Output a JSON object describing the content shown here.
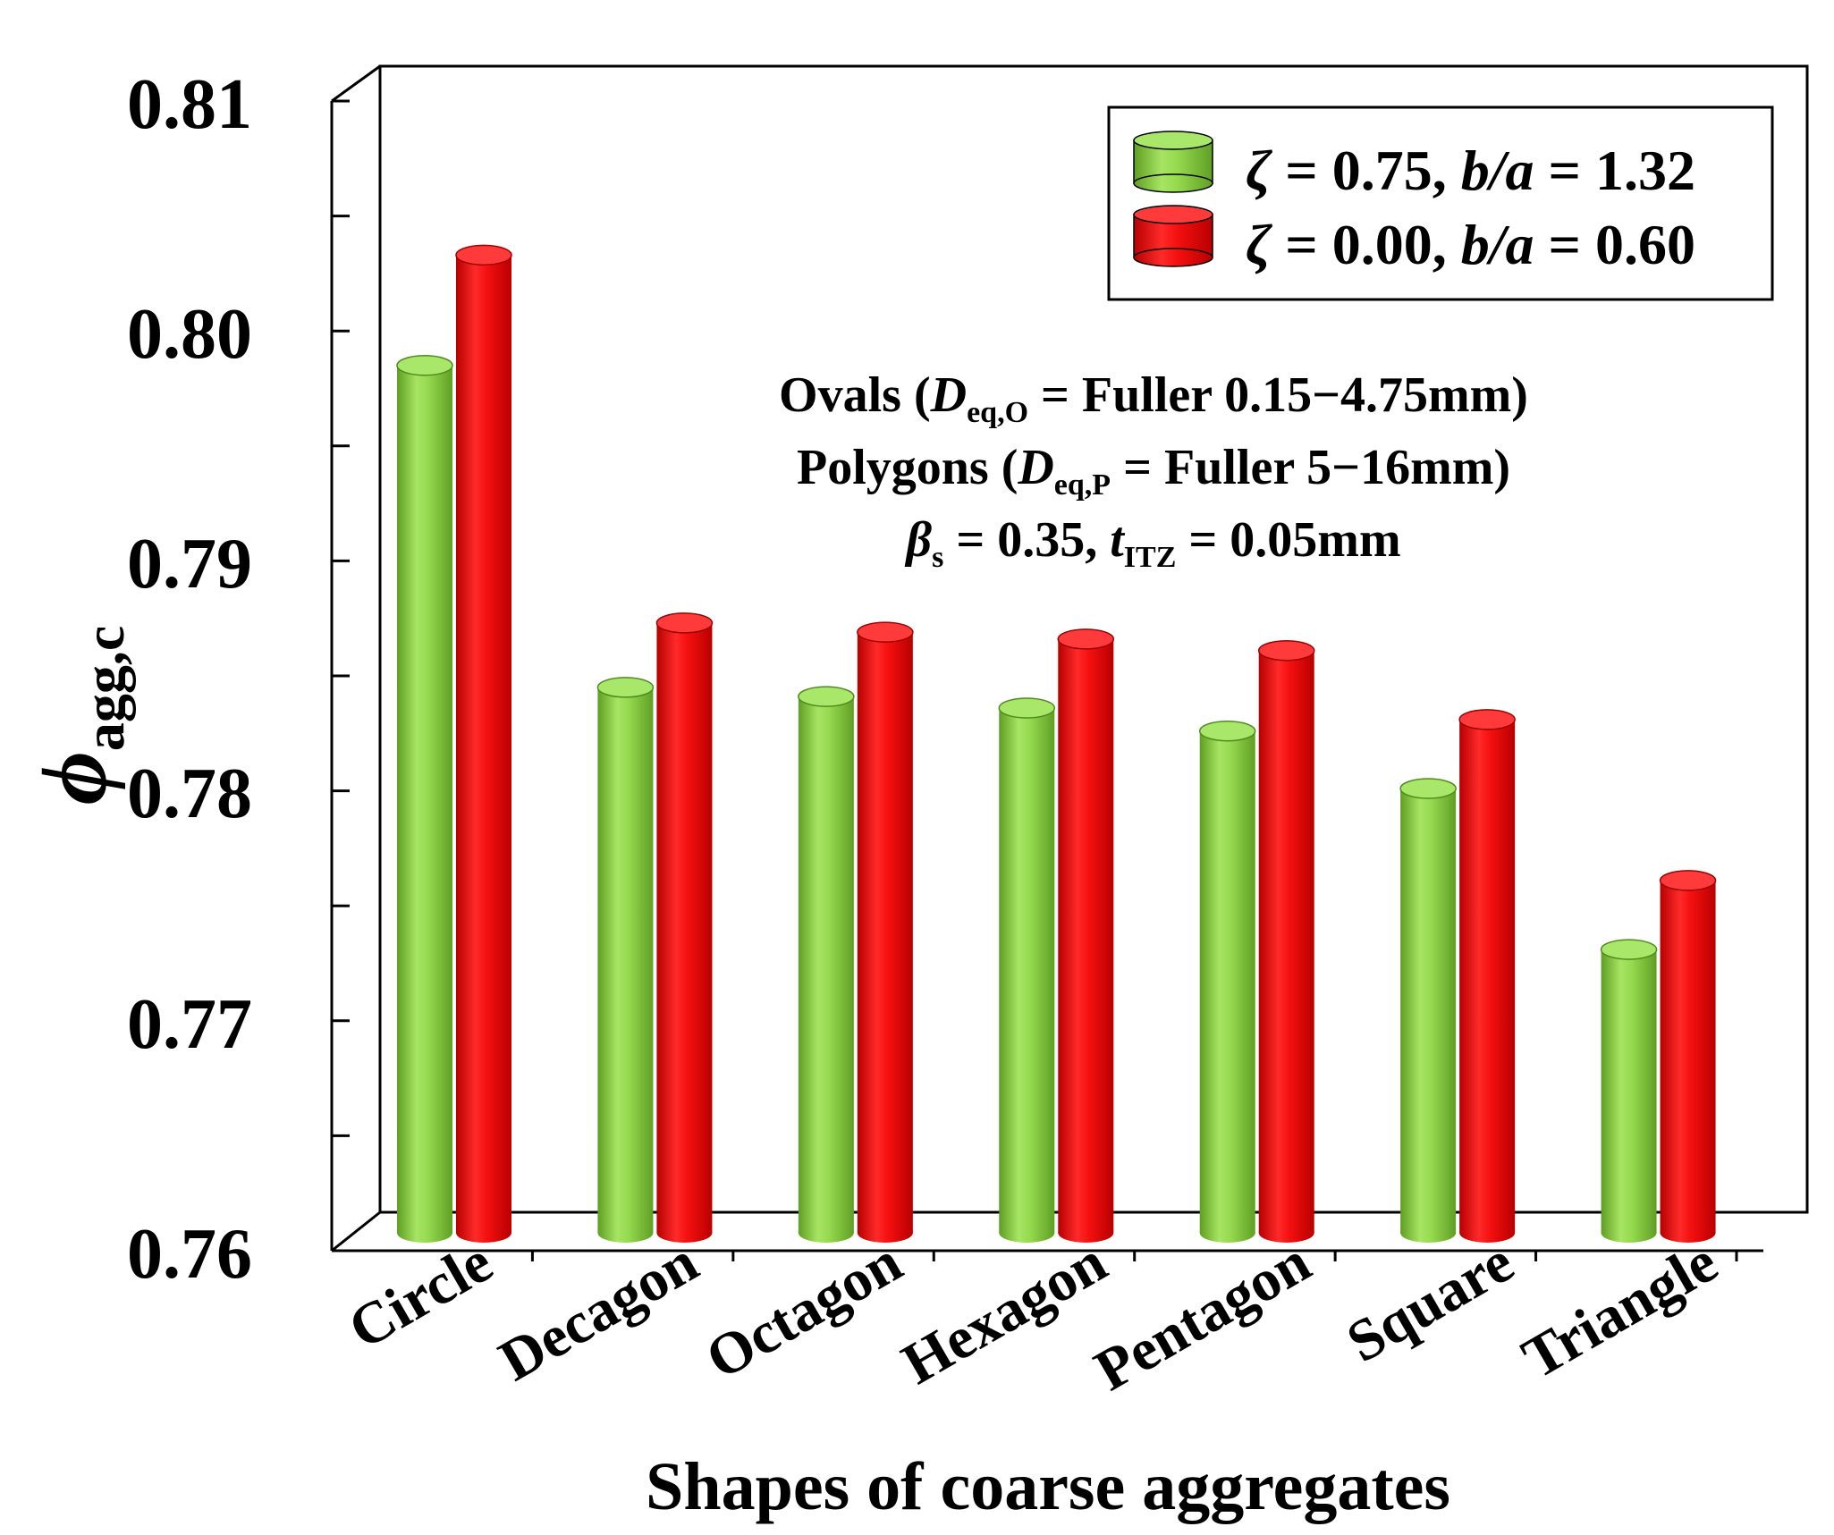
{
  "chart_data": {
    "type": "bar",
    "title": "",
    "xlabel": "Shapes of coarse aggregates",
    "ylabel": {
      "symbol": "ϕ",
      "subscript": "agg,c"
    },
    "ylim": [
      0.76,
      0.81
    ],
    "yticks": [
      "0.76",
      "0.77",
      "0.78",
      "0.79",
      "0.80",
      "0.81"
    ],
    "categories": [
      "Circle",
      "Decagon",
      "Octagon",
      "Hexagon",
      "Pentagon",
      "Square",
      "Triangle"
    ],
    "series": [
      {
        "name": "ζ = 0.75, b/a = 1.32",
        "color": "#8cd443",
        "values": [
          0.7985,
          0.7845,
          0.7841,
          0.7836,
          0.7826,
          0.7801,
          0.7731
        ]
      },
      {
        "name": "ζ = 0.00, b/a = 0.60",
        "color": "#f20b0b",
        "values": [
          0.8033,
          0.7873,
          0.7869,
          0.7866,
          0.7861,
          0.7831,
          0.7761
        ]
      }
    ],
    "legend": {
      "position": "top-right",
      "entries": [
        {
          "zeta_sym": "ζ",
          "zeta_val": " = 0.75, ",
          "ratio_sym": "b/a",
          "ratio_val": " = 1.32"
        },
        {
          "zeta_sym": "ζ",
          "zeta_val": " = 0.00, ",
          "ratio_sym": "b/a",
          "ratio_val": " = 0.60"
        }
      ]
    },
    "annotations": {
      "line1": {
        "pre": "Ovals (",
        "var": "D",
        "sub": "eq,O",
        "post": " = Fuller 0.15−4.75mm)"
      },
      "line2": {
        "pre": "Polygons (",
        "var": "D",
        "sub": "eq,P",
        "post": " = Fuller 5−16mm)"
      },
      "line3": {
        "beta": "β",
        "beta_sub": "s",
        "beta_val": " = 0.35, ",
        "t": "t",
        "t_sub": "ITZ",
        "t_val": " = 0.05mm"
      }
    }
  }
}
